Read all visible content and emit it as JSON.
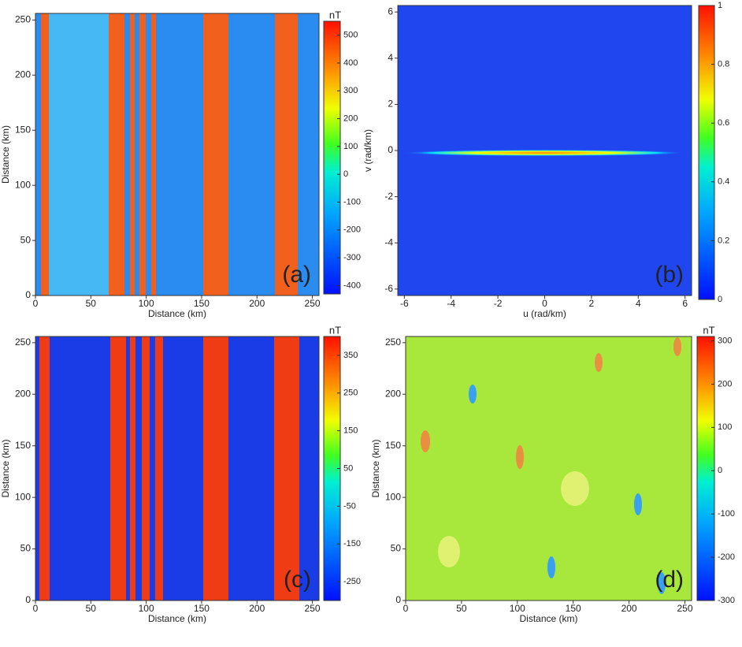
{
  "chart_data": [
    {
      "type": "heatmap",
      "panel_label": "(a)",
      "xlabel": "Distance (km)",
      "ylabel": "Distance (km)",
      "colorbar_label": "nT",
      "xlim": [
        0,
        256
      ],
      "ylim": [
        0,
        256
      ],
      "xticks": [
        0,
        50,
        100,
        150,
        200,
        250
      ],
      "yticks": [
        0,
        50,
        100,
        150,
        200,
        250
      ],
      "clim": [
        -430,
        550
      ],
      "cticks": [
        -400,
        -300,
        -200,
        -100,
        0,
        100,
        200,
        300,
        400,
        500
      ]
    },
    {
      "type": "heatmap",
      "panel_label": "(b)",
      "xlabel": "u (rad/km)",
      "ylabel": "v (rad/km)",
      "xlim": [
        -6.28,
        6.28
      ],
      "ylim": [
        -6.28,
        6.28
      ],
      "xticks": [
        -6,
        -4,
        -2,
        0,
        2,
        4,
        6
      ],
      "yticks": [
        -6,
        -4,
        -2,
        0,
        2,
        4,
        6
      ],
      "clim": [
        0,
        1
      ],
      "cticks": [
        0,
        0.2,
        0.4,
        0.6,
        0.8,
        1
      ]
    },
    {
      "type": "heatmap",
      "panel_label": "(c)",
      "xlabel": "Distance (km)",
      "ylabel": "Distance (km)",
      "colorbar_label": "nT",
      "xlim": [
        0,
        256
      ],
      "ylim": [
        0,
        256
      ],
      "xticks": [
        0,
        50,
        100,
        150,
        200,
        250
      ],
      "yticks": [
        0,
        50,
        100,
        150,
        200,
        250
      ],
      "clim": [
        -300,
        400
      ],
      "cticks": [
        -250,
        -150,
        -50,
        50,
        150,
        250,
        350
      ]
    },
    {
      "type": "heatmap",
      "panel_label": "(d)",
      "xlabel": "Distance (km)",
      "ylabel": "Distance (km)",
      "colorbar_label": "nT",
      "xlim": [
        0,
        256
      ],
      "ylim": [
        0,
        256
      ],
      "xticks": [
        0,
        50,
        100,
        150,
        200,
        250
      ],
      "yticks": [
        0,
        50,
        100,
        150,
        200,
        250
      ],
      "clim": [
        -300,
        310
      ],
      "cticks": [
        -300,
        -200,
        -100,
        0,
        100,
        200,
        300
      ]
    }
  ]
}
